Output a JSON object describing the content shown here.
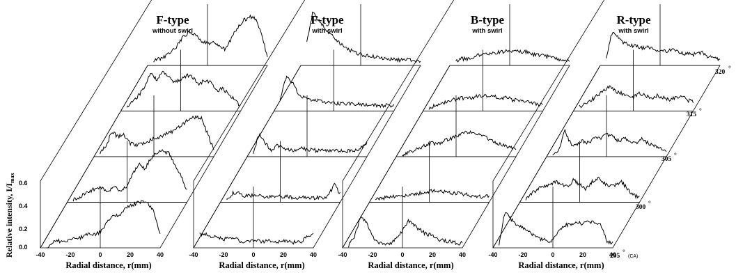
{
  "chart_data": {
    "type": "line",
    "layout": "3d-stacked waterfall panels",
    "ylabel": "Relative intensity, I/I",
    "ylabel_sub": "max",
    "y_ticks": [
      "0.0",
      "0.2",
      "0.4",
      "0.6"
    ],
    "ylim": [
      0,
      0.6
    ],
    "xlim": [
      -40,
      40
    ],
    "x_ticks": [
      "-40",
      "-20",
      "0",
      "20",
      "40"
    ],
    "xlabel": "Radial distance, r(mm)",
    "angles": [
      "295",
      "300",
      "305",
      "315",
      "320"
    ],
    "angle_unit": "(CA)",
    "r": [
      -36,
      -32,
      -28,
      -24,
      -20,
      -16,
      -12,
      -8,
      -4,
      0,
      4,
      8,
      12,
      16,
      20,
      24,
      28,
      32,
      36,
      40
    ],
    "panels": [
      {
        "title": "F-type",
        "subtitle": "without swirl",
        "series": [
          {
            "angle": "295",
            "values": [
              0.0,
              0.05,
              0.06,
              0.06,
              0.08,
              0.08,
              0.1,
              0.12,
              0.12,
              0.14,
              0.22,
              0.3,
              0.28,
              0.34,
              0.38,
              0.4,
              0.42,
              0.4,
              0.32,
              0.12
            ]
          },
          {
            "angle": "300",
            "values": [
              0.02,
              0.04,
              0.08,
              0.1,
              0.14,
              0.12,
              0.1,
              0.14,
              0.1,
              0.14,
              0.26,
              0.34,
              0.3,
              0.4,
              0.44,
              0.46,
              0.44,
              0.34,
              0.24,
              0.1
            ]
          },
          {
            "angle": "305",
            "values": [
              0.04,
              0.1,
              0.22,
              0.18,
              0.2,
              0.12,
              0.1,
              0.12,
              0.14,
              0.16,
              0.18,
              0.2,
              0.22,
              0.26,
              0.3,
              0.34,
              0.36,
              0.34,
              0.2,
              0.06
            ]
          },
          {
            "angle": "315",
            "values": [
              0.04,
              0.08,
              0.14,
              0.22,
              0.34,
              0.28,
              0.36,
              0.3,
              0.26,
              0.28,
              0.32,
              0.3,
              0.24,
              0.28,
              0.26,
              0.18,
              0.2,
              0.16,
              0.1,
              0.04
            ]
          },
          {
            "angle": "320",
            "values": [
              0.04,
              0.06,
              0.08,
              0.12,
              0.18,
              0.26,
              0.3,
              0.28,
              0.22,
              0.2,
              0.2,
              0.18,
              0.14,
              0.24,
              0.34,
              0.4,
              0.44,
              0.42,
              0.3,
              0.06
            ]
          }
        ]
      },
      {
        "title": "F-type",
        "subtitle": "with swirl",
        "series": [
          {
            "angle": "295",
            "values": [
              0.12,
              0.12,
              0.1,
              0.1,
              0.08,
              0.08,
              0.08,
              0.06,
              0.06,
              0.06,
              0.06,
              0.06,
              0.06,
              0.05,
              0.06,
              0.05,
              0.05,
              0.05,
              0.1,
              0.14
            ]
          },
          {
            "angle": "300",
            "values": [
              0.02,
              0.08,
              0.08,
              0.06,
              0.06,
              0.06,
              0.05,
              0.05,
              0.05,
              0.05,
              0.05,
              0.04,
              0.04,
              0.04,
              0.04,
              0.04,
              0.04,
              0.05,
              0.16,
              0.08
            ]
          },
          {
            "angle": "305",
            "values": [
              0.04,
              0.2,
              0.12,
              0.06,
              0.1,
              0.08,
              0.06,
              0.06,
              0.08,
              0.06,
              0.06,
              0.05,
              0.06,
              0.05,
              0.05,
              0.05,
              0.05,
              0.06,
              0.08,
              0.12
            ]
          },
          {
            "angle": "315",
            "values": [
              0.1,
              0.3,
              0.26,
              0.16,
              0.12,
              0.1,
              0.1,
              0.08,
              0.08,
              0.07,
              0.07,
              0.07,
              0.06,
              0.06,
              0.06,
              0.06,
              0.05,
              0.05,
              0.05,
              0.05
            ]
          },
          {
            "angle": "320",
            "values": [
              0.2,
              0.48,
              0.4,
              0.34,
              0.28,
              0.22,
              0.18,
              0.14,
              0.12,
              0.1,
              0.09,
              0.08,
              0.07,
              0.06,
              0.06,
              0.05,
              0.05,
              0.05,
              0.04,
              0.04
            ]
          }
        ]
      },
      {
        "title": "B-type",
        "subtitle": "with swirl",
        "series": [
          {
            "angle": "295",
            "values": [
              0.02,
              0.1,
              0.28,
              0.24,
              0.1,
              0.05,
              0.04,
              0.04,
              0.08,
              0.16,
              0.24,
              0.2,
              0.16,
              0.12,
              0.12,
              0.08,
              0.06,
              0.06,
              0.04,
              0.04
            ]
          },
          {
            "angle": "300",
            "values": [
              0.02,
              0.04,
              0.04,
              0.05,
              0.06,
              0.06,
              0.07,
              0.08,
              0.08,
              0.1,
              0.1,
              0.1,
              0.09,
              0.08,
              0.08,
              0.07,
              0.06,
              0.05,
              0.05,
              0.06
            ]
          },
          {
            "angle": "305",
            "values": [
              0.02,
              0.04,
              0.06,
              0.08,
              0.1,
              0.12,
              0.12,
              0.14,
              0.16,
              0.18,
              0.2,
              0.22,
              0.22,
              0.2,
              0.18,
              0.14,
              0.12,
              0.1,
              0.08,
              0.06
            ]
          },
          {
            "angle": "315",
            "values": [
              0.02,
              0.05,
              0.06,
              0.08,
              0.1,
              0.11,
              0.12,
              0.12,
              0.13,
              0.14,
              0.14,
              0.13,
              0.12,
              0.12,
              0.1,
              0.1,
              0.08,
              0.08,
              0.06,
              0.06
            ]
          },
          {
            "angle": "320",
            "values": [
              0.04,
              0.06,
              0.06,
              0.08,
              0.09,
              0.1,
              0.1,
              0.12,
              0.12,
              0.13,
              0.13,
              0.12,
              0.12,
              0.1,
              0.09,
              0.08,
              0.08,
              0.06,
              0.05,
              0.04
            ]
          }
        ]
      },
      {
        "title": "R-type",
        "subtitle": "with swirl",
        "series": [
          {
            "angle": "295",
            "values": [
              0.02,
              0.32,
              0.26,
              0.2,
              0.18,
              0.14,
              0.1,
              0.08,
              0.06,
              0.06,
              0.16,
              0.2,
              0.22,
              0.22,
              0.22,
              0.24,
              0.22,
              0.2,
              0.06,
              0.04
            ]
          },
          {
            "angle": "300",
            "values": [
              0.02,
              0.08,
              0.12,
              0.14,
              0.16,
              0.18,
              0.16,
              0.14,
              0.2,
              0.16,
              0.12,
              0.18,
              0.22,
              0.18,
              0.14,
              0.16,
              0.18,
              0.12,
              0.06,
              0.04
            ]
          },
          {
            "angle": "305",
            "values": [
              0.02,
              0.06,
              0.24,
              0.12,
              0.1,
              0.14,
              0.12,
              0.18,
              0.16,
              0.2,
              0.18,
              0.14,
              0.16,
              0.14,
              0.12,
              0.16,
              0.12,
              0.1,
              0.08,
              0.06
            ]
          },
          {
            "angle": "315",
            "values": [
              0.04,
              0.06,
              0.1,
              0.14,
              0.18,
              0.22,
              0.18,
              0.16,
              0.14,
              0.12,
              0.16,
              0.14,
              0.12,
              0.14,
              0.12,
              0.1,
              0.12,
              0.14,
              0.1,
              0.08
            ]
          },
          {
            "angle": "320",
            "values": [
              0.08,
              0.3,
              0.26,
              0.2,
              0.18,
              0.18,
              0.16,
              0.16,
              0.14,
              0.14,
              0.12,
              0.14,
              0.12,
              0.1,
              0.1,
              0.1,
              0.12,
              0.08,
              0.06,
              0.06
            ]
          }
        ]
      }
    ]
  }
}
